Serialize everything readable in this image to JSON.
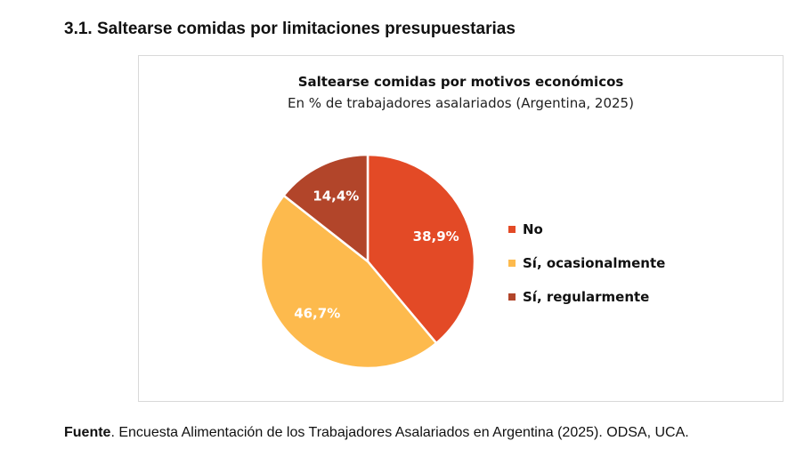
{
  "heading": "3.1. Saltearse comidas por limitaciones presupuestarias",
  "chart_data": {
    "type": "pie",
    "title": "Saltearse comidas por motivos económicos",
    "subtitle": "En % de trabajadores asalariados (Argentina, 2025)",
    "categories": [
      "No",
      "Sí, ocasionalmente",
      "Sí, regularmente"
    ],
    "values": [
      38.9,
      46.7,
      14.4
    ],
    "labels": [
      "38,9%",
      "46,7%",
      "14,4%"
    ],
    "colors": [
      "#E34A26",
      "#FDBA4D",
      "#B2452A"
    ],
    "legend_position": "right"
  },
  "source": {
    "label": "Fuente",
    "text": ". Encuesta Alimentación de los Trabajadores Asalariados en Argentina (2025). ODSA, UCA."
  }
}
